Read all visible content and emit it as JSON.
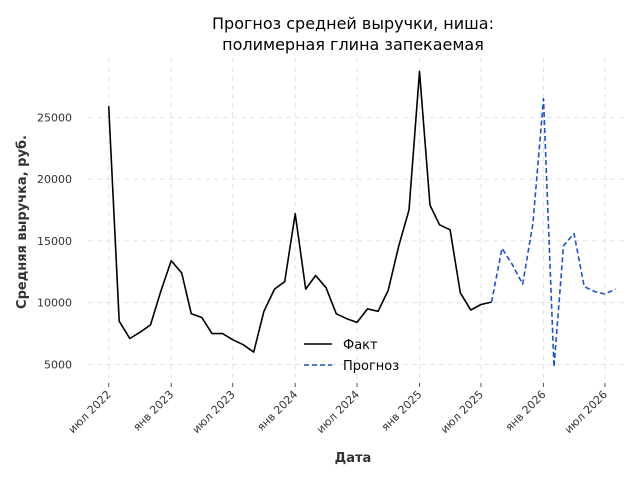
{
  "chart_data": {
    "type": "line",
    "title": "Прогноз средней выручки, ниша:",
    "subtitle": "полимерная глина запекаемая",
    "xlabel": "Дата",
    "ylabel": "Средняя выручка, руб.",
    "ylim": [
      3500,
      29800
    ],
    "yticks": [
      5000,
      10000,
      15000,
      20000,
      25000
    ],
    "xlim": [
      "2022-05-01",
      "2026-09-01"
    ],
    "xticks": [
      {
        "date": "2022-07-01",
        "label": "июл 2022"
      },
      {
        "date": "2023-01-01",
        "label": "янв 2023"
      },
      {
        "date": "2023-07-01",
        "label": "июл 2023"
      },
      {
        "date": "2024-01-01",
        "label": "янв 2024"
      },
      {
        "date": "2024-07-01",
        "label": "июл 2024"
      },
      {
        "date": "2025-01-01",
        "label": "янв 2025"
      },
      {
        "date": "2025-07-01",
        "label": "июл 2025"
      },
      {
        "date": "2026-01-01",
        "label": "янв 2026"
      },
      {
        "date": "2026-07-01",
        "label": "июл 2026"
      }
    ],
    "grid": true,
    "legend_position": "center-bottom",
    "series": [
      {
        "name": "Факт",
        "color": "#000000",
        "style": "solid",
        "x": [
          "2022-07-01",
          "2022-08-01",
          "2022-09-01",
          "2022-10-01",
          "2022-11-01",
          "2022-12-01",
          "2023-01-01",
          "2023-02-01",
          "2023-03-01",
          "2023-04-01",
          "2023-05-01",
          "2023-06-01",
          "2023-07-01",
          "2023-08-01",
          "2023-09-01",
          "2023-10-01",
          "2023-11-01",
          "2023-12-01",
          "2024-01-01",
          "2024-02-01",
          "2024-03-01",
          "2024-04-01",
          "2024-05-01",
          "2024-06-01",
          "2024-07-01",
          "2024-08-01",
          "2024-09-01",
          "2024-10-01",
          "2024-11-01",
          "2024-12-01",
          "2025-01-01",
          "2025-02-01",
          "2025-03-01",
          "2025-04-01",
          "2025-05-01",
          "2025-06-01",
          "2025-07-01",
          "2025-08-01"
        ],
        "values": [
          25900,
          8500,
          7100,
          7600,
          8200,
          10900,
          13400,
          12400,
          9100,
          8800,
          7500,
          7500,
          7000,
          6600,
          6000,
          9300,
          11100,
          11700,
          17200,
          11100,
          12200,
          11200,
          9100,
          8700,
          8400,
          9500,
          9300,
          11000,
          14600,
          17500,
          28700,
          17900,
          16300,
          15900,
          10800,
          9400,
          9850,
          10050
        ]
      },
      {
        "name": "Прогноз",
        "color": "#1f4fd6",
        "style": "dashed",
        "x": [
          "2025-08-01",
          "2025-09-01",
          "2025-10-01",
          "2025-11-01",
          "2025-12-01",
          "2026-01-01",
          "2026-02-01",
          "2026-03-01",
          "2026-04-01",
          "2026-05-01",
          "2026-06-01",
          "2026-07-01",
          "2026-08-01"
        ],
        "values": [
          10050,
          14400,
          13100,
          11500,
          16400,
          26500,
          4800,
          14600,
          15600,
          11300,
          10900,
          10700,
          11100
        ]
      }
    ]
  }
}
